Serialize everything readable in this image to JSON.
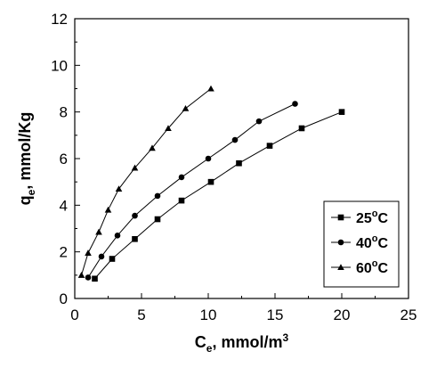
{
  "chart_data": {
    "type": "line",
    "xlabel": {
      "main": "C",
      "sub": "e",
      "rest": ", mmol/m",
      "sup": "3"
    },
    "ylabel": {
      "main": "q",
      "sub": "e",
      "rest": ", mmol/Kg"
    },
    "xlim": [
      0,
      25
    ],
    "ylim": [
      0,
      12
    ],
    "xticks": [
      0,
      5,
      10,
      15,
      20,
      25
    ],
    "yticks": [
      0,
      2,
      4,
      6,
      8,
      10,
      12
    ],
    "grid": false,
    "legend_position": "bottom-right",
    "series": [
      {
        "label": {
          "main": "25",
          "sup": "o",
          "rest": "C"
        },
        "marker": "square",
        "x": [
          1.5,
          2.8,
          4.5,
          6.2,
          8.0,
          10.2,
          12.3,
          14.6,
          17.0,
          20.0
        ],
        "y": [
          0.85,
          1.7,
          2.55,
          3.4,
          4.2,
          5.0,
          5.8,
          6.55,
          7.3,
          8.0
        ]
      },
      {
        "label": {
          "main": "40",
          "sup": "o",
          "rest": "C"
        },
        "marker": "circle",
        "x": [
          1.0,
          2.0,
          3.2,
          4.5,
          6.2,
          8.0,
          10.0,
          12.0,
          13.8,
          16.5
        ],
        "y": [
          0.9,
          1.8,
          2.7,
          3.55,
          4.4,
          5.2,
          6.0,
          6.8,
          7.6,
          8.35
        ]
      },
      {
        "label": {
          "main": "60",
          "sup": "o",
          "rest": "C"
        },
        "marker": "triangle",
        "x": [
          0.5,
          1.0,
          1.8,
          2.5,
          3.3,
          4.5,
          5.8,
          7.0,
          8.3,
          10.2
        ],
        "y": [
          1.0,
          1.95,
          2.85,
          3.8,
          4.7,
          5.6,
          6.45,
          7.3,
          8.15,
          9.0
        ]
      }
    ]
  }
}
